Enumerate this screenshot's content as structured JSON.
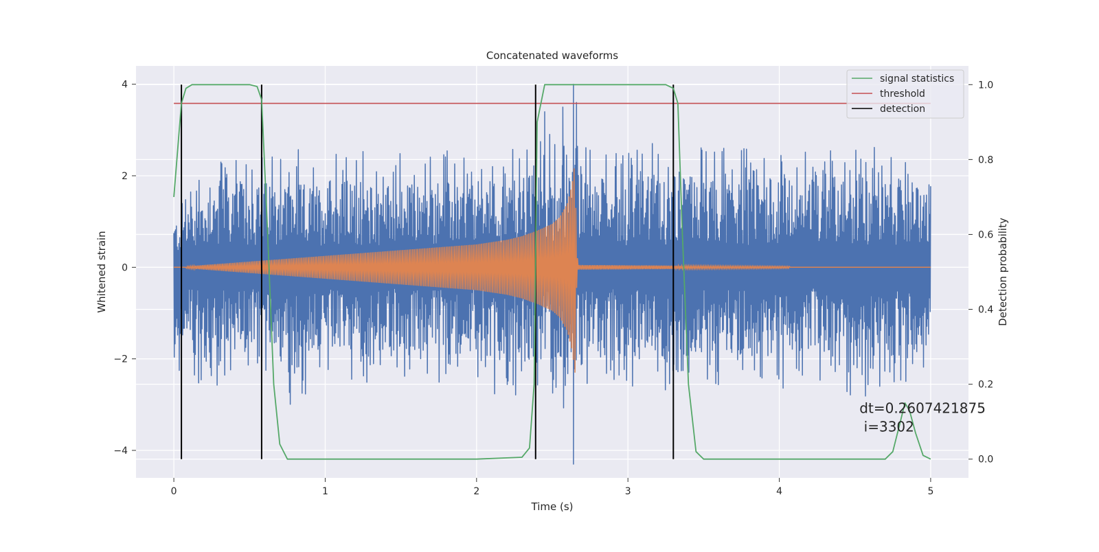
{
  "chart_data": {
    "type": "line",
    "title": "Concatenated waveforms",
    "xlabel": "Time (s)",
    "ylabel_left": "Whitened strain",
    "ylabel_right": "Detection probability",
    "xlim": [
      -0.25,
      5.25
    ],
    "ylim_left": [
      -4.6,
      4.4
    ],
    "ylim_right": [
      -0.05,
      1.05
    ],
    "x_ticks": [
      0,
      1,
      2,
      3,
      4,
      5
    ],
    "y_ticks_left": [
      -4,
      -2,
      0,
      2,
      4
    ],
    "y_ticks_right": [
      0.0,
      0.2,
      0.4,
      0.6,
      0.8,
      1.0
    ],
    "grid": true,
    "legend_position": "top-right",
    "legend": [
      {
        "label": "signal statistics",
        "color": "#55a868"
      },
      {
        "label": "threshold",
        "color": "#c44e52"
      },
      {
        "label": "detection",
        "color": "#000000"
      }
    ],
    "series": [
      {
        "role": "noise",
        "color": "#4c72b0",
        "x_range": [
          0,
          5
        ],
        "envelope_upper": [
          1.4,
          1.9,
          2.3,
          2.5,
          2.6,
          2.5,
          2.6,
          2.7,
          2.6,
          2.5,
          2.6,
          2.7,
          2.6,
          2.5,
          2.6,
          2.5,
          2.6,
          2.5,
          2.6,
          2.5,
          2.6,
          2.7,
          2.6,
          2.9,
          2.8,
          3.0,
          3.5,
          2.8,
          2.6,
          2.7,
          2.6,
          2.8,
          2.7,
          2.6,
          2.8,
          2.7,
          2.6,
          2.7,
          2.6,
          2.9,
          2.6,
          2.5,
          2.6,
          2.7,
          2.6,
          2.6,
          2.7,
          2.6,
          2.7,
          2.6,
          2.5
        ],
        "envelope_lower": [
          -2.2,
          -2.5,
          -2.8,
          -2.6,
          -2.5,
          -2.6,
          -2.3,
          -2.4,
          -3.4,
          -2.6,
          -2.5,
          -2.7,
          -2.6,
          -2.8,
          -2.6,
          -2.5,
          -2.6,
          -2.4,
          -2.7,
          -2.6,
          -2.5,
          -2.8,
          -2.7,
          -2.9,
          -2.8,
          -2.8,
          -3.3,
          -2.9,
          -2.8,
          -2.6,
          -2.7,
          -2.6,
          -2.8,
          -2.6,
          -2.7,
          -2.5,
          -2.6,
          -2.6,
          -2.5,
          -2.7,
          -2.8,
          -2.6,
          -2.5,
          -2.6,
          -2.9,
          -3.1,
          -2.8,
          -2.6,
          -2.7,
          -2.4,
          -2.1
        ],
        "spikes": [
          [
            2.64,
            4.0
          ],
          [
            2.64,
            -4.3
          ],
          [
            2.45,
            3.4
          ],
          [
            2.57,
            3.5
          ],
          [
            2.66,
            3.6
          ]
        ]
      },
      {
        "role": "injected waveform",
        "color": "#dd8452",
        "x": [
          0,
          2,
          2.1,
          2.2,
          2.3,
          2.4,
          2.5,
          2.55,
          2.6,
          2.63,
          2.65,
          2.66,
          2.67,
          5
        ],
        "amplitude": [
          0,
          0.5,
          0.55,
          0.6,
          0.68,
          0.8,
          0.95,
          1.1,
          1.4,
          1.8,
          2.3,
          0.5,
          0.05,
          0
        ]
      },
      {
        "name": "signal statistics",
        "color": "#55a868",
        "axis": "right",
        "x": [
          0,
          0.02,
          0.05,
          0.08,
          0.12,
          0.2,
          0.5,
          0.55,
          0.58,
          0.62,
          0.66,
          0.7,
          0.75,
          0.8,
          1.0,
          2.0,
          2.3,
          2.35,
          2.38,
          2.4,
          2.45,
          2.5,
          3.25,
          3.3,
          3.33,
          3.36,
          3.4,
          3.45,
          3.5,
          3.6,
          4.0,
          4.7,
          4.75,
          4.8,
          4.83,
          4.86,
          4.9,
          4.95,
          5.0
        ],
        "y": [
          0.7,
          0.8,
          0.95,
          0.99,
          1.0,
          1.0,
          1.0,
          0.995,
          0.96,
          0.6,
          0.2,
          0.04,
          0.0,
          0.0,
          0.0,
          0.0,
          0.005,
          0.03,
          0.2,
          0.9,
          1.0,
          1.0,
          1.0,
          0.99,
          0.95,
          0.6,
          0.2,
          0.02,
          0.0,
          0.0,
          0.0,
          0.0,
          0.02,
          0.1,
          0.15,
          0.13,
          0.07,
          0.01,
          0.0
        ]
      },
      {
        "name": "threshold",
        "color": "#c44e52",
        "axis": "right",
        "x": [
          0,
          5
        ],
        "y": [
          0.95,
          0.95
        ]
      }
    ],
    "detections": {
      "color": "#000000",
      "x": [
        0.05,
        0.58,
        2.39,
        3.3
      ]
    },
    "annotation": {
      "line1": "dt=0.2607421875",
      "line2": " i=3302",
      "x": 4.53,
      "y": 0.12
    }
  }
}
